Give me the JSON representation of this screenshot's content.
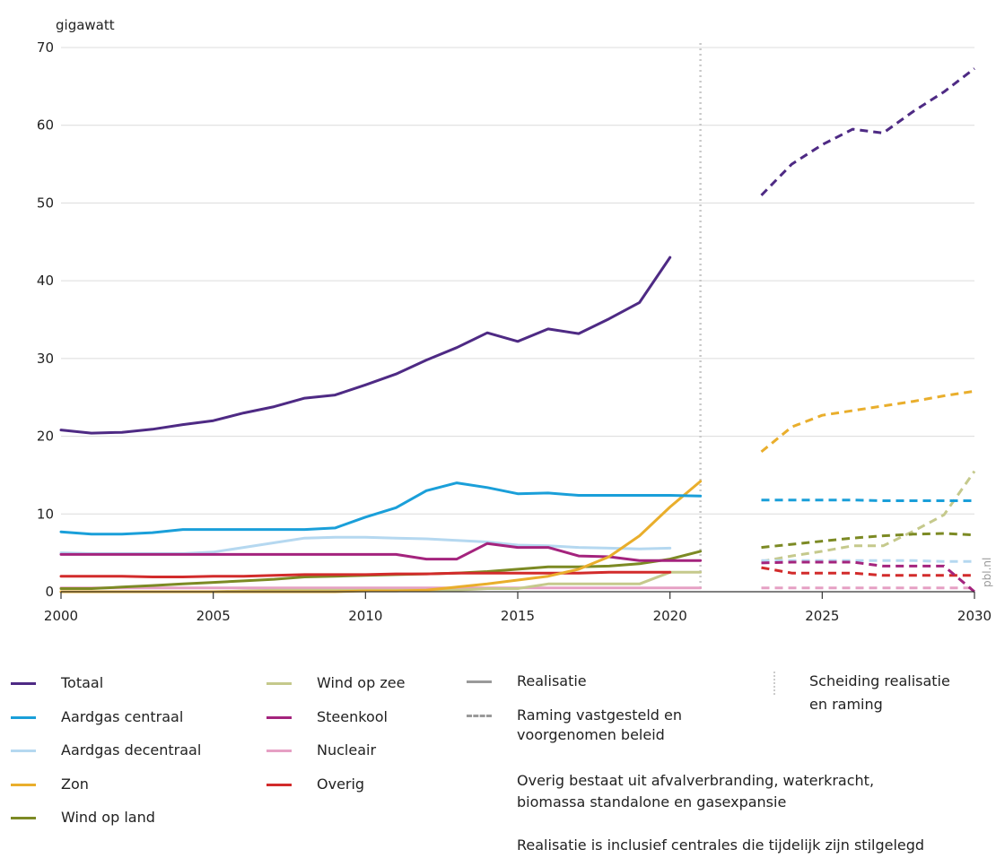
{
  "chart_data": {
    "type": "line",
    "ylabel": "gigawatt",
    "ylim": [
      0,
      70
    ],
    "yticks": [
      0,
      10,
      20,
      30,
      40,
      50,
      60,
      70
    ],
    "xlim": [
      2000,
      2030
    ],
    "xticks": [
      2000,
      2005,
      2010,
      2015,
      2020,
      2025,
      2030
    ],
    "separator_year": 2021,
    "grid": "horizontal",
    "watermark": "pbl.nl",
    "series": [
      {
        "key": "totaal",
        "name": "Totaal",
        "color": "#4e2a84",
        "realisatie": {
          "x": [
            2000,
            2001,
            2002,
            2003,
            2004,
            2005,
            2006,
            2007,
            2008,
            2009,
            2010,
            2011,
            2012,
            2013,
            2014,
            2015,
            2016,
            2017,
            2018,
            2019,
            2020
          ],
          "y": [
            20.8,
            20.4,
            20.5,
            20.9,
            21.5,
            22.0,
            23.0,
            23.8,
            24.9,
            25.3,
            26.6,
            28.0,
            29.8,
            31.4,
            33.3,
            32.2,
            33.8,
            33.2,
            35.1,
            37.2,
            43.0
          ]
        },
        "raming": {
          "x": [
            2023,
            2024,
            2025,
            2026,
            2027,
            2028,
            2029,
            2030
          ],
          "y": [
            51.0,
            55.0,
            57.5,
            59.5,
            59.0,
            61.8,
            64.3,
            67.3
          ]
        }
      },
      {
        "key": "aardgas_centraal",
        "name": "Aardgas centraal",
        "color": "#1a9fd9",
        "realisatie": {
          "x": [
            2000,
            2001,
            2002,
            2003,
            2004,
            2005,
            2006,
            2007,
            2008,
            2009,
            2010,
            2011,
            2012,
            2013,
            2014,
            2015,
            2016,
            2017,
            2018,
            2019,
            2020,
            2021
          ],
          "y": [
            7.7,
            7.4,
            7.4,
            7.6,
            8.0,
            8.0,
            8.0,
            8.0,
            8.0,
            8.2,
            9.6,
            10.8,
            13.0,
            14.0,
            13.4,
            12.6,
            12.7,
            12.4,
            12.4,
            12.4,
            12.4,
            12.3
          ]
        },
        "raming": {
          "x": [
            2023,
            2024,
            2025,
            2026,
            2027,
            2028,
            2029,
            2030
          ],
          "y": [
            11.8,
            11.8,
            11.8,
            11.8,
            11.7,
            11.7,
            11.7,
            11.7
          ]
        }
      },
      {
        "key": "aardgas_decentraal",
        "name": "Aardgas decentraal",
        "color": "#b5d8f0",
        "realisatie": {
          "x": [
            2000,
            2001,
            2002,
            2003,
            2004,
            2005,
            2006,
            2007,
            2008,
            2009,
            2010,
            2011,
            2012,
            2013,
            2014,
            2015,
            2016,
            2017,
            2018,
            2019,
            2020
          ],
          "y": [
            5.0,
            4.9,
            4.9,
            4.9,
            4.9,
            5.1,
            5.7,
            6.3,
            6.9,
            7.0,
            7.0,
            6.9,
            6.8,
            6.6,
            6.4,
            6.0,
            5.9,
            5.7,
            5.6,
            5.5,
            5.6
          ]
        },
        "raming": {
          "x": [
            2023,
            2024,
            2025,
            2026,
            2027,
            2028,
            2029,
            2030
          ],
          "y": [
            4.0,
            4.0,
            4.0,
            4.0,
            4.0,
            4.0,
            3.9,
            3.9
          ]
        }
      },
      {
        "key": "zon",
        "name": "Zon",
        "color": "#e9ae2c",
        "realisatie": {
          "x": [
            2000,
            2001,
            2002,
            2003,
            2004,
            2005,
            2006,
            2007,
            2008,
            2009,
            2010,
            2011,
            2012,
            2013,
            2014,
            2015,
            2016,
            2017,
            2018,
            2019,
            2020,
            2021
          ],
          "y": [
            0.0,
            0.0,
            0.0,
            0.0,
            0.0,
            0.0,
            0.0,
            0.0,
            0.0,
            0.0,
            0.1,
            0.1,
            0.2,
            0.6,
            1.0,
            1.5,
            2.0,
            2.9,
            4.5,
            7.2,
            10.9,
            14.2
          ]
        },
        "raming": {
          "x": [
            2023,
            2024,
            2025,
            2026,
            2027,
            2028,
            2029,
            2030
          ],
          "y": [
            18.0,
            21.2,
            22.7,
            23.3,
            23.9,
            24.5,
            25.2,
            25.8
          ]
        }
      },
      {
        "key": "wind_op_land",
        "name": "Wind op land",
        "color": "#7c8a24",
        "realisatie": {
          "x": [
            2000,
            2001,
            2002,
            2003,
            2004,
            2005,
            2006,
            2007,
            2008,
            2009,
            2010,
            2011,
            2012,
            2013,
            2014,
            2015,
            2016,
            2017,
            2018,
            2019,
            2020,
            2021
          ],
          "y": [
            0.4,
            0.4,
            0.6,
            0.8,
            1.0,
            1.2,
            1.4,
            1.6,
            1.9,
            2.0,
            2.1,
            2.2,
            2.3,
            2.4,
            2.6,
            2.9,
            3.2,
            3.2,
            3.3,
            3.6,
            4.2,
            5.2
          ]
        },
        "raming": {
          "x": [
            2023,
            2024,
            2025,
            2026,
            2027,
            2028,
            2029,
            2030
          ],
          "y": [
            5.7,
            6.1,
            6.5,
            6.9,
            7.2,
            7.4,
            7.5,
            7.3
          ]
        }
      },
      {
        "key": "wind_op_zee",
        "name": "Wind op zee",
        "color": "#c5c98c",
        "realisatie": {
          "x": [
            2000,
            2001,
            2002,
            2003,
            2004,
            2005,
            2006,
            2007,
            2008,
            2009,
            2010,
            2011,
            2012,
            2013,
            2014,
            2015,
            2016,
            2017,
            2018,
            2019,
            2020,
            2021
          ],
          "y": [
            0,
            0,
            0,
            0,
            0,
            0,
            0.1,
            0.2,
            0.2,
            0.2,
            0.2,
            0.2,
            0.2,
            0.2,
            0.4,
            0.4,
            1.0,
            1.0,
            1.0,
            1.0,
            2.5,
            2.5
          ]
        },
        "raming": {
          "x": [
            2023,
            2024,
            2025,
            2026,
            2027,
            2028,
            2029,
            2030
          ],
          "y": [
            3.9,
            4.6,
            5.2,
            5.9,
            5.9,
            7.8,
            9.9,
            15.5
          ]
        }
      },
      {
        "key": "steenkool",
        "name": "Steenkool",
        "color": "#a4237d",
        "realisatie": {
          "x": [
            2000,
            2001,
            2002,
            2003,
            2004,
            2005,
            2006,
            2007,
            2008,
            2009,
            2010,
            2011,
            2012,
            2013,
            2014,
            2015,
            2016,
            2017,
            2018,
            2019,
            2020,
            2021
          ],
          "y": [
            4.8,
            4.8,
            4.8,
            4.8,
            4.8,
            4.8,
            4.8,
            4.8,
            4.8,
            4.8,
            4.8,
            4.8,
            4.2,
            4.2,
            6.2,
            5.7,
            5.7,
            4.6,
            4.5,
            4.0,
            4.0,
            4.0
          ]
        },
        "raming": {
          "x": [
            2023,
            2024,
            2025,
            2026,
            2027,
            2028,
            2029,
            2030
          ],
          "y": [
            3.7,
            3.8,
            3.8,
            3.8,
            3.3,
            3.3,
            3.3,
            0.0
          ]
        }
      },
      {
        "key": "nucleair",
        "name": "Nucleair",
        "color": "#e6a0c4",
        "realisatie": {
          "x": [
            2000,
            2005,
            2010,
            2015,
            2020,
            2021
          ],
          "y": [
            0.5,
            0.5,
            0.5,
            0.5,
            0.5,
            0.5
          ]
        },
        "raming": {
          "x": [
            2023,
            2030
          ],
          "y": [
            0.5,
            0.5
          ]
        }
      },
      {
        "key": "overig",
        "name": "Overig",
        "color": "#d22b2b",
        "realisatie": {
          "x": [
            2000,
            2001,
            2002,
            2003,
            2004,
            2005,
            2006,
            2007,
            2008,
            2009,
            2010,
            2011,
            2012,
            2013,
            2014,
            2015,
            2016,
            2017,
            2018,
            2019,
            2020
          ],
          "y": [
            2.0,
            2.0,
            2.0,
            1.9,
            1.9,
            2.0,
            2.0,
            2.1,
            2.2,
            2.2,
            2.2,
            2.3,
            2.3,
            2.4,
            2.4,
            2.4,
            2.4,
            2.4,
            2.5,
            2.5,
            2.5
          ]
        },
        "raming": {
          "x": [
            2023,
            2024,
            2025,
            2026,
            2027,
            2028,
            2029,
            2030
          ],
          "y": [
            3.1,
            2.4,
            2.4,
            2.4,
            2.1,
            2.1,
            2.1,
            2.1
          ]
        }
      }
    ]
  },
  "legend": {
    "col1": [
      {
        "key": "totaal",
        "label": "Totaal",
        "color": "#4e2a84"
      },
      {
        "key": "aardgas_centraal",
        "label": "Aardgas centraal",
        "color": "#1a9fd9"
      },
      {
        "key": "aardgas_decentraal",
        "label": "Aardgas decentraal",
        "color": "#b5d8f0"
      },
      {
        "key": "zon",
        "label": "Zon",
        "color": "#e9ae2c"
      },
      {
        "key": "wind_op_land",
        "label": "Wind op land",
        "color": "#7c8a24"
      }
    ],
    "col2": [
      {
        "key": "wind_op_zee",
        "label": "Wind op zee",
        "color": "#c5c98c"
      },
      {
        "key": "steenkool",
        "label": "Steenkool",
        "color": "#a4237d"
      },
      {
        "key": "nucleair",
        "label": "Nucleair",
        "color": "#e6a0c4"
      },
      {
        "key": "overig",
        "label": "Overig",
        "color": "#d22b2b"
      }
    ],
    "realisatie": "Realisatie",
    "raming_line1": "Raming vastgesteld en",
    "raming_line2": "voorgenomen beleid",
    "scheiding_line1": "Scheiding realisatie",
    "scheiding_line2": "en raming",
    "neutral_color": "#9a9a9a",
    "separator_color": "#cccccc"
  },
  "notes": {
    "overig_line1": "Overig bestaat uit afvalverbranding, waterkracht,",
    "overig_line2": "biomassa standalone en gasexpansie",
    "realisatie_line": "Realisatie is inclusief centrales die tijdelijk zijn stilgelegd"
  }
}
